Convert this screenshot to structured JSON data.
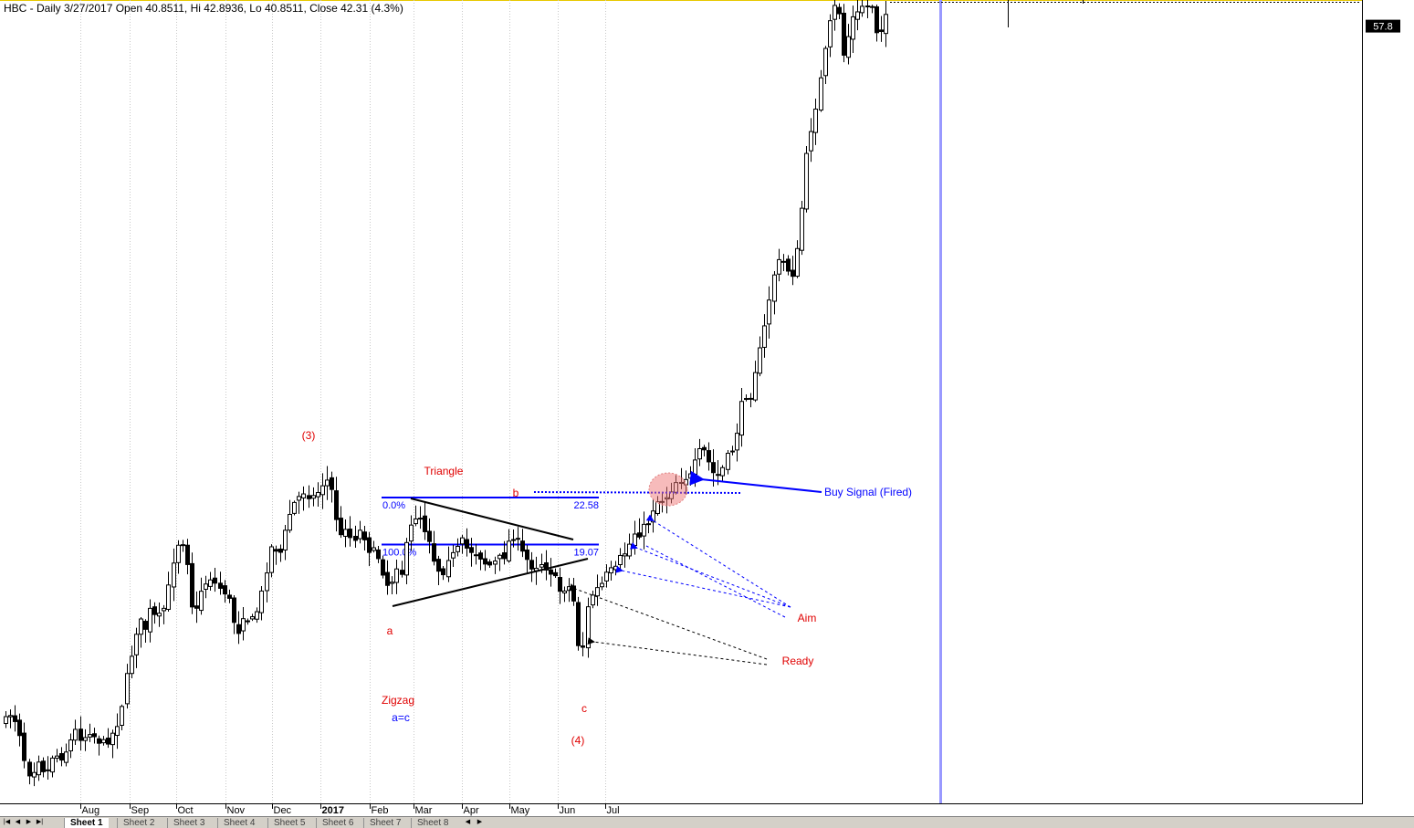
{
  "chart_data": {
    "type": "candlestick",
    "title": "HBC - Daily 3/27/2017 Open 40.8511, Hi 42.8936, Lo 40.8511, Close 42.31 (4.3%)",
    "price_label": "57.8",
    "yrange": [
      10,
      58
    ],
    "months": [
      {
        "label": "Aug",
        "date": "2016-08-01"
      },
      {
        "label": "Sep",
        "date": "2016-09-01"
      },
      {
        "label": "Oct",
        "date": "2016-10-01"
      },
      {
        "label": "Nov",
        "date": "2016-11-01"
      },
      {
        "label": "Dec",
        "date": "2016-12-01"
      },
      {
        "label": "2017",
        "date": "2017-01-01"
      },
      {
        "label": "Feb",
        "date": "2017-02-01"
      },
      {
        "label": "Mar",
        "date": "2017-03-01"
      },
      {
        "label": "Apr",
        "date": "2017-04-01"
      },
      {
        "label": "May",
        "date": "2017-05-01"
      },
      {
        "label": "Jun",
        "date": "2017-06-01"
      },
      {
        "label": "Jul",
        "date": "2017-07-01"
      }
    ],
    "fib_levels": [
      {
        "pct": "0.0%",
        "value": "22.58",
        "price": 22.58
      },
      {
        "pct": "100.0%",
        "value": "19.07",
        "price": 19.07
      }
    ],
    "annotations": {
      "wave3": "(3)",
      "wave4": "(4)",
      "triangle": "Triangle",
      "wave_a": "a",
      "wave_b": "b",
      "wave_c": "c",
      "zigzag": "Zigzag",
      "a_eq_c": "a=c",
      "buy_signal": "Buy Signal (Fired)",
      "aim": "Aim",
      "ready": "Ready"
    },
    "colors": {
      "up": "#ffffff",
      "down": "#000000",
      "fib": "#0000ff",
      "label": "#e00000",
      "signal": "#0000ff",
      "vline": "#9999ff"
    }
  },
  "tabs": {
    "items": [
      "Sheet 1",
      "Sheet 2",
      "Sheet 3",
      "Sheet 4",
      "Sheet 5",
      "Sheet 6",
      "Sheet 7",
      "Sheet 8"
    ]
  }
}
